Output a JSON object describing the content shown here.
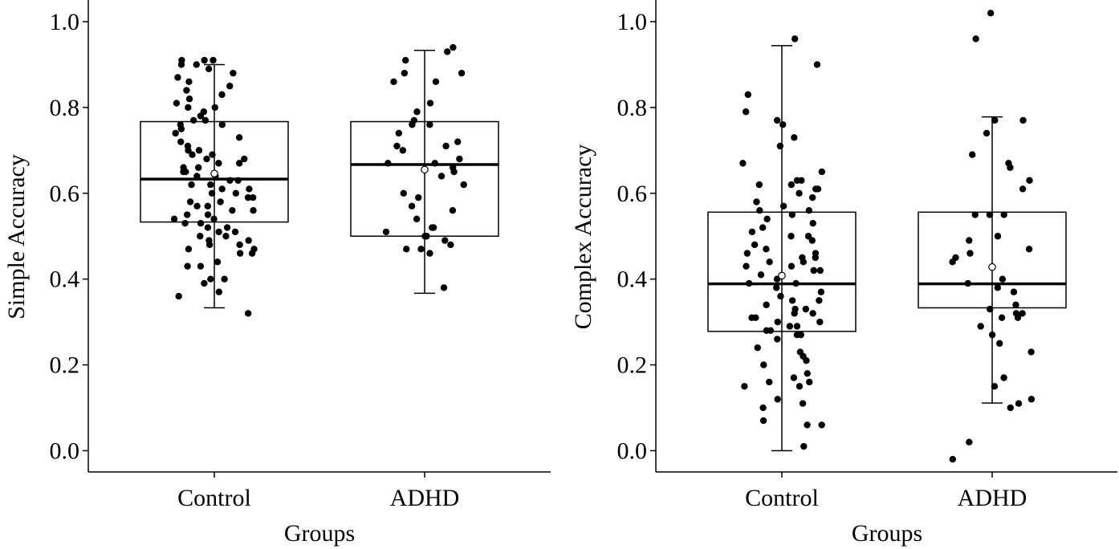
{
  "chart_data": [
    {
      "type": "box",
      "xlabel": "Groups",
      "ylabel": "Simple Accuracy",
      "ylim": [
        -0.05,
        1.05
      ],
      "yticks": [
        "0.0",
        "0.2",
        "0.4",
        "0.6",
        "0.8",
        "1.0"
      ],
      "yticks_values": [
        0.0,
        0.2,
        0.4,
        0.6,
        0.8,
        1.0
      ],
      "grid": false,
      "categories": [
        "Control",
        "ADHD"
      ],
      "boxes": [
        {
          "group": "Control",
          "whisker_low": 0.333,
          "q1": 0.533,
          "median": 0.633,
          "q3": 0.767,
          "whisker_high": 0.9,
          "mean": 0.646,
          "points": [
            0.32,
            0.36,
            0.37,
            0.39,
            0.4,
            0.4,
            0.43,
            0.43,
            0.44,
            0.46,
            0.46,
            0.47,
            0.47,
            0.48,
            0.48,
            0.49,
            0.49,
            0.5,
            0.5,
            0.51,
            0.51,
            0.52,
            0.52,
            0.53,
            0.53,
            0.54,
            0.54,
            0.55,
            0.55,
            0.56,
            0.56,
            0.57,
            0.57,
            0.58,
            0.58,
            0.59,
            0.59,
            0.6,
            0.6,
            0.61,
            0.61,
            0.62,
            0.62,
            0.63,
            0.63,
            0.64,
            0.64,
            0.65,
            0.65,
            0.66,
            0.66,
            0.67,
            0.67,
            0.68,
            0.68,
            0.69,
            0.69,
            0.7,
            0.7,
            0.71,
            0.72,
            0.73,
            0.74,
            0.75,
            0.76,
            0.76,
            0.77,
            0.77,
            0.78,
            0.79,
            0.8,
            0.8,
            0.81,
            0.82,
            0.83,
            0.84,
            0.85,
            0.86,
            0.87,
            0.88,
            0.89,
            0.9,
            0.9,
            0.91,
            0.91,
            0.91
          ]
        },
        {
          "group": "ADHD",
          "whisker_low": 0.367,
          "q1": 0.5,
          "median": 0.667,
          "q3": 0.767,
          "whisker_high": 0.933,
          "mean": 0.655,
          "points": [
            0.38,
            0.46,
            0.47,
            0.47,
            0.48,
            0.49,
            0.5,
            0.5,
            0.5,
            0.51,
            0.52,
            0.52,
            0.54,
            0.56,
            0.57,
            0.59,
            0.6,
            0.62,
            0.64,
            0.65,
            0.66,
            0.67,
            0.67,
            0.68,
            0.7,
            0.71,
            0.71,
            0.72,
            0.74,
            0.76,
            0.76,
            0.77,
            0.79,
            0.81,
            0.86,
            0.86,
            0.88,
            0.88,
            0.91,
            0.93,
            0.94
          ]
        }
      ]
    },
    {
      "type": "box",
      "xlabel": "Groups",
      "ylabel": "Complex Accuracy",
      "ylim": [
        -0.05,
        1.05
      ],
      "yticks": [
        "0.0",
        "0.2",
        "0.4",
        "0.6",
        "0.8",
        "1.0"
      ],
      "yticks_values": [
        0.0,
        0.2,
        0.4,
        0.6,
        0.8,
        1.0
      ],
      "grid": false,
      "categories": [
        "Control",
        "ADHD"
      ],
      "boxes": [
        {
          "group": "Control",
          "whisker_low": 0.0,
          "q1": 0.278,
          "median": 0.389,
          "q3": 0.556,
          "whisker_high": 0.944,
          "mean": 0.408,
          "points": [
            0.01,
            0.06,
            0.06,
            0.07,
            0.1,
            0.11,
            0.12,
            0.15,
            0.15,
            0.16,
            0.16,
            0.17,
            0.18,
            0.2,
            0.21,
            0.22,
            0.23,
            0.24,
            0.26,
            0.27,
            0.27,
            0.28,
            0.28,
            0.29,
            0.29,
            0.3,
            0.3,
            0.31,
            0.31,
            0.32,
            0.32,
            0.33,
            0.33,
            0.34,
            0.35,
            0.35,
            0.36,
            0.37,
            0.38,
            0.39,
            0.39,
            0.4,
            0.41,
            0.42,
            0.42,
            0.43,
            0.43,
            0.44,
            0.44,
            0.45,
            0.45,
            0.46,
            0.46,
            0.47,
            0.48,
            0.49,
            0.5,
            0.5,
            0.51,
            0.52,
            0.53,
            0.54,
            0.55,
            0.56,
            0.56,
            0.57,
            0.58,
            0.59,
            0.6,
            0.61,
            0.61,
            0.62,
            0.62,
            0.63,
            0.63,
            0.65,
            0.67,
            0.71,
            0.73,
            0.76,
            0.77,
            0.79,
            0.83,
            0.9,
            0.96
          ]
        },
        {
          "group": "ADHD",
          "whisker_low": 0.111,
          "q1": 0.333,
          "median": 0.389,
          "q3": 0.556,
          "whisker_high": 0.778,
          "mean": 0.428,
          "points": [
            -0.02,
            0.02,
            0.1,
            0.11,
            0.12,
            0.15,
            0.17,
            0.23,
            0.25,
            0.27,
            0.29,
            0.31,
            0.31,
            0.32,
            0.32,
            0.33,
            0.34,
            0.37,
            0.38,
            0.39,
            0.4,
            0.44,
            0.45,
            0.46,
            0.47,
            0.49,
            0.5,
            0.55,
            0.55,
            0.55,
            0.61,
            0.63,
            0.66,
            0.67,
            0.69,
            0.74,
            0.77,
            0.77,
            0.96,
            1.02
          ]
        }
      ]
    }
  ]
}
